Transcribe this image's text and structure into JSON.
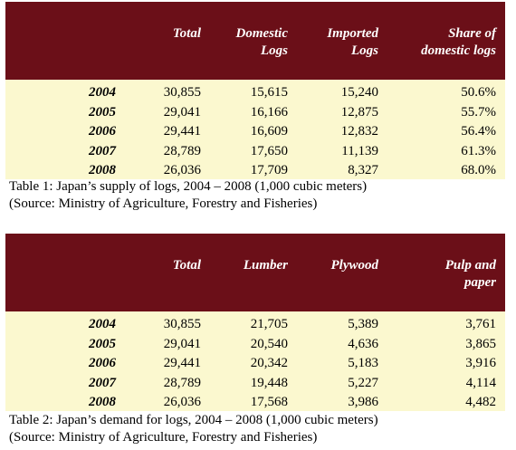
{
  "table1": {
    "headers": [
      "Total",
      "Domestic\nLogs",
      "Imported\nLogs",
      "Share of\ndomestic logs"
    ],
    "rows": [
      {
        "year": "2004",
        "total": "30,855",
        "domestic": "15,615",
        "imported": "15,240",
        "share": "50.6%"
      },
      {
        "year": "2005",
        "total": "29,041",
        "domestic": "16,166",
        "imported": "12,875",
        "share": "55.7%"
      },
      {
        "year": "2006",
        "total": "29,441",
        "domestic": "16,609",
        "imported": "12,832",
        "share": "56.4%"
      },
      {
        "year": "2007",
        "total": "28,789",
        "domestic": "17,650",
        "imported": "11,139",
        "share": "61.3%"
      },
      {
        "year": "2008",
        "total": "26,036",
        "domestic": "17,709",
        "imported": "8,327",
        "share": "68.0%"
      }
    ],
    "caption_line1": "Table 1: Japan’s supply of logs, 2004 – 2008 (1,000 cubic meters)",
    "caption_line2": "(Source: Ministry of Agriculture, Forestry and Fisheries)"
  },
  "table2": {
    "headers": [
      "Total",
      "Lumber",
      "Plywood",
      "Pulp and\npaper"
    ],
    "rows": [
      {
        "year": "2004",
        "total": "30,855",
        "lumber": "21,705",
        "plywood": "5,389",
        "pulp": "3,761"
      },
      {
        "year": "2005",
        "total": "29,041",
        "lumber": "20,540",
        "plywood": "4,636",
        "pulp": "3,865"
      },
      {
        "year": "2006",
        "total": "29,441",
        "lumber": "20,342",
        "plywood": "5,183",
        "pulp": "3,916"
      },
      {
        "year": "2007",
        "total": "28,789",
        "lumber": "19,448",
        "plywood": "5,227",
        "pulp": "4,114"
      },
      {
        "year": "2008",
        "total": "26,036",
        "lumber": "17,568",
        "plywood": "3,986",
        "pulp": "4,482"
      }
    ],
    "caption_line1": "Table 2: Japan’s demand for logs, 2004 – 2008 (1,000 cubic meters)",
    "caption_line2": "(Source: Ministry of Agriculture, Forestry and Fisheries)"
  },
  "colors": {
    "header_bg": "#6b0f18",
    "body_bg": "#fbf8cf",
    "header_text": "#ffffff"
  }
}
